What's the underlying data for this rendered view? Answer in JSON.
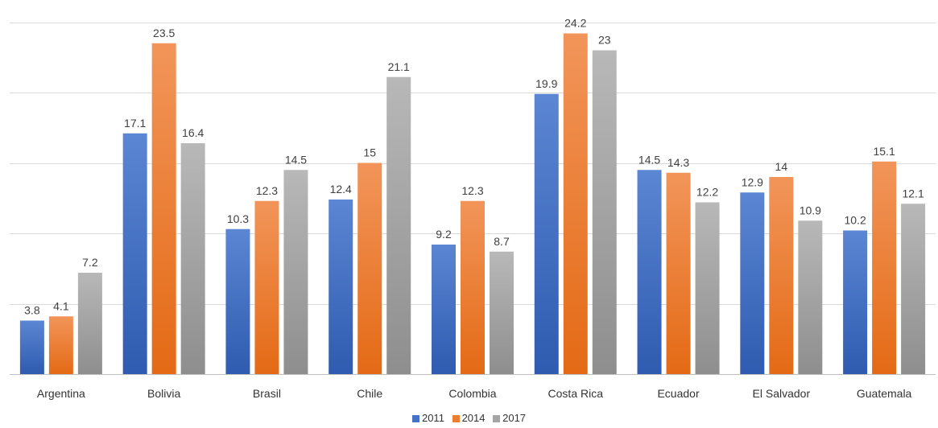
{
  "chart_data": {
    "type": "bar",
    "title": "",
    "xlabel": "",
    "ylabel": "",
    "categories": [
      "Argentina",
      "Bolivia",
      "Brasil",
      "Chile",
      "Colombia",
      "Costa Rica",
      "Ecuador",
      "El Salvador",
      "Guatemala"
    ],
    "series": [
      {
        "name": "2011",
        "color": "#4472C4",
        "values": [
          3.8,
          17.1,
          10.3,
          12.4,
          9.2,
          19.9,
          14.5,
          12.9,
          10.2
        ]
      },
      {
        "name": "2014",
        "color": "#ED7D31",
        "values": [
          4.1,
          23.5,
          12.3,
          15,
          12.3,
          24.2,
          14.3,
          14,
          15.1
        ]
      },
      {
        "name": "2017",
        "color": "#A5A5A5",
        "values": [
          7.2,
          16.4,
          14.5,
          21.1,
          8.7,
          23,
          12.2,
          10.9,
          12.1
        ]
      }
    ],
    "ylim": [
      0,
      25
    ],
    "grid": true,
    "legend_position": "bottom"
  }
}
